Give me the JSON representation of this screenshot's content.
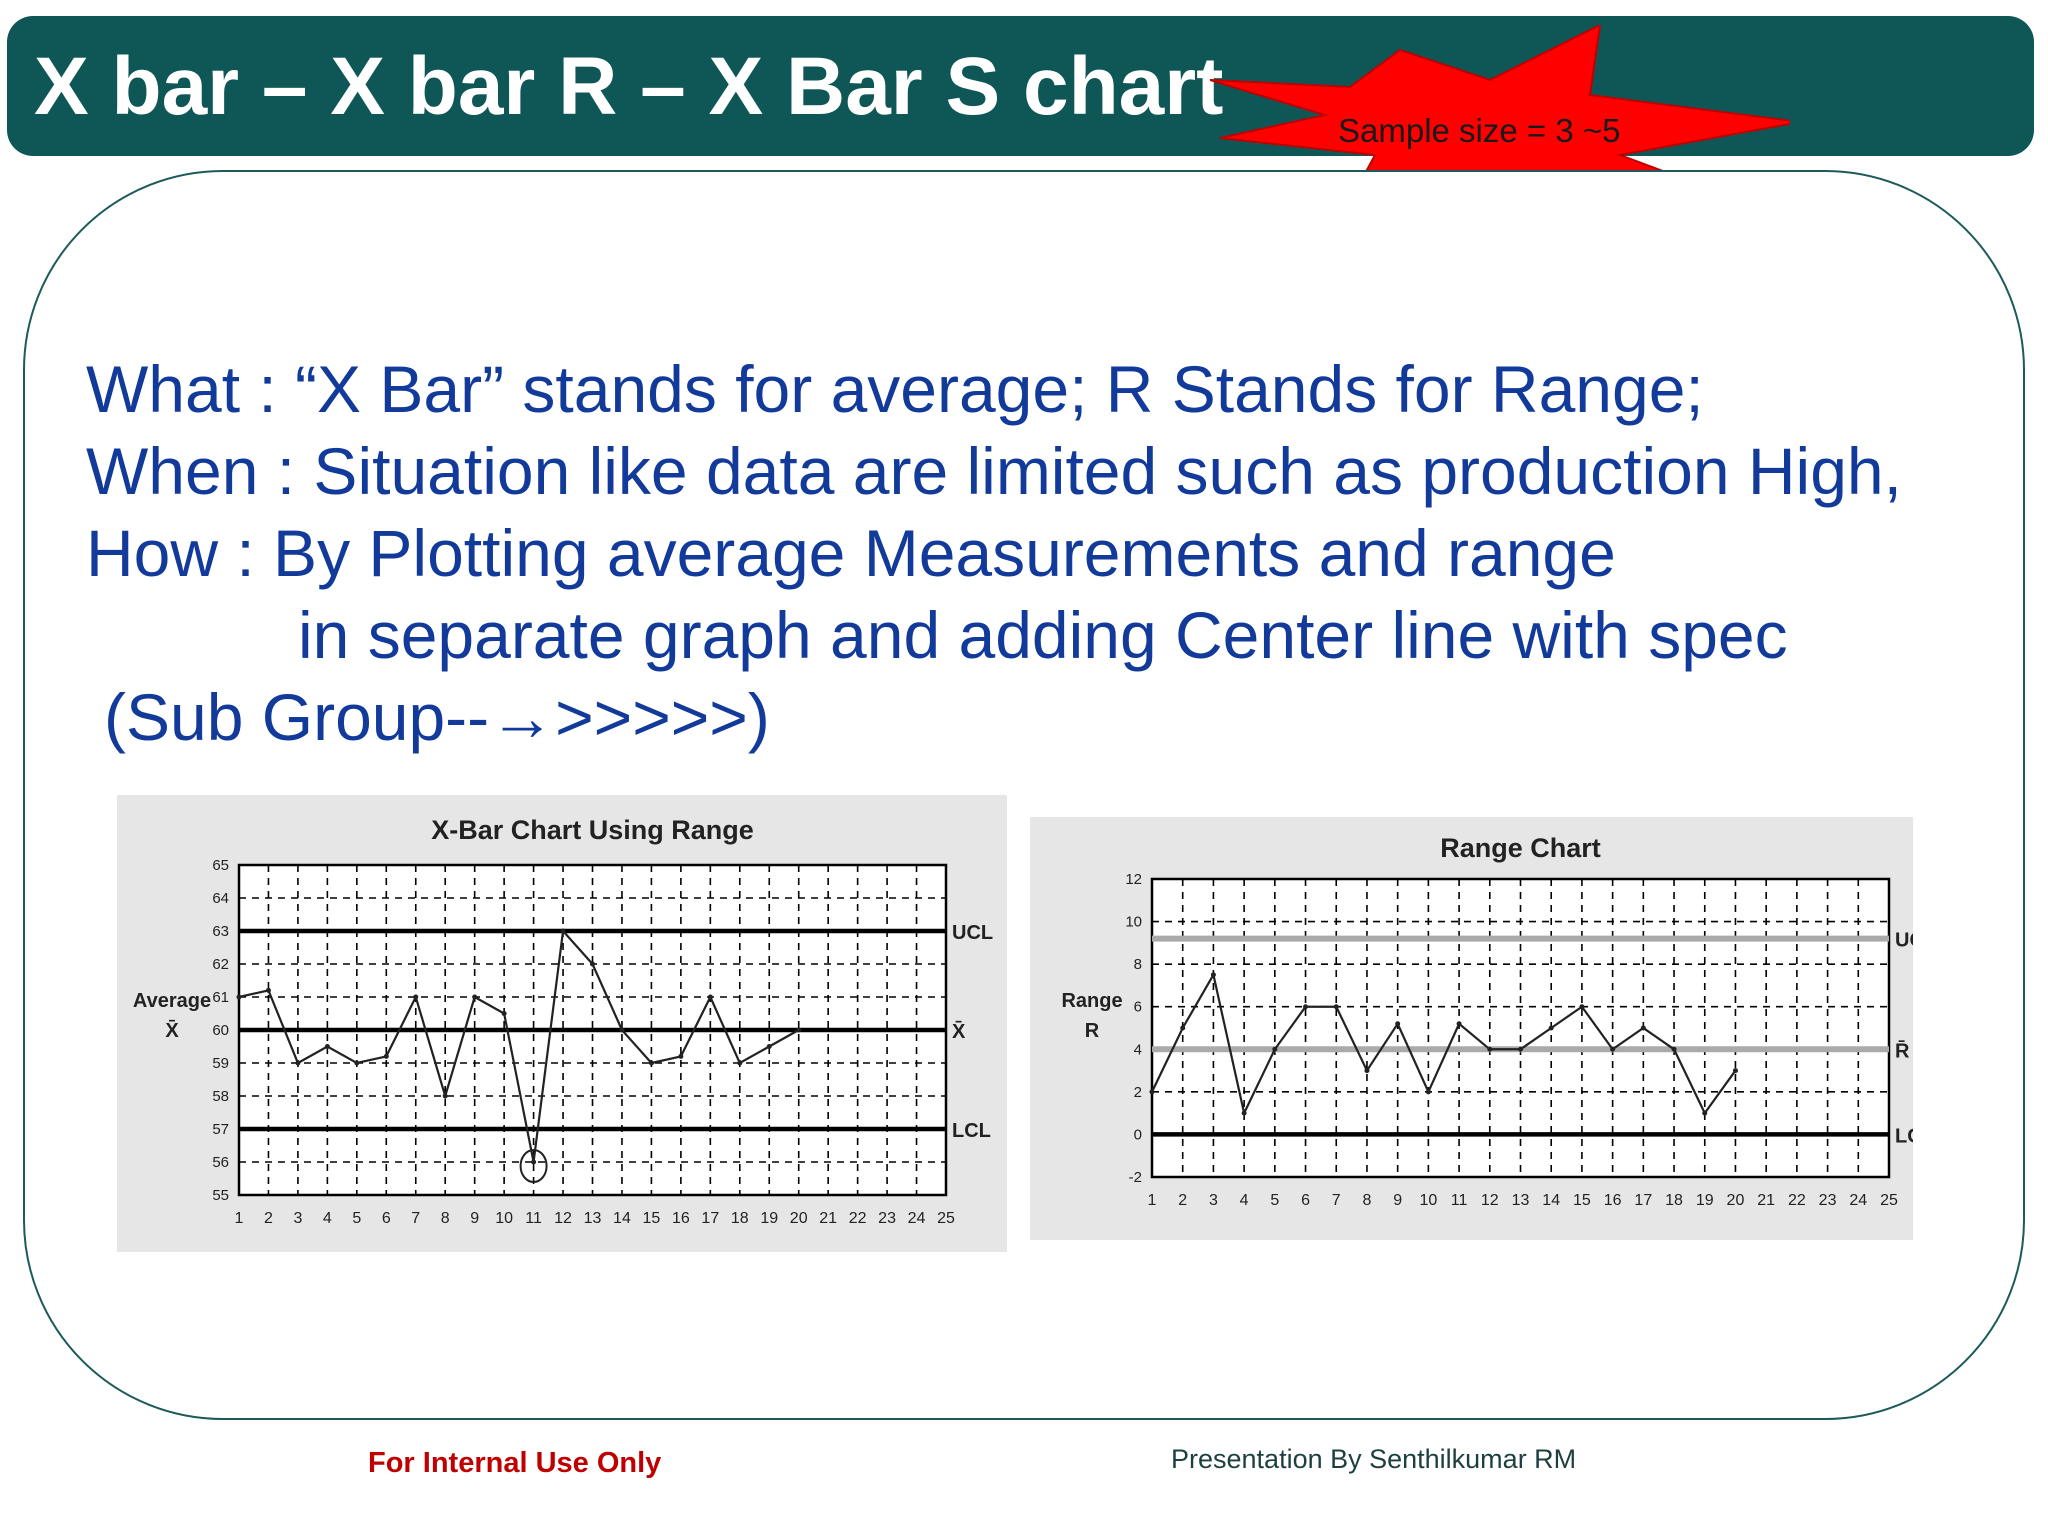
{
  "slide": {
    "title": "X bar – X bar R – X Bar S chart",
    "callout": "Sample size = 3 ~5",
    "body_lines": [
      "What : “X Bar” stands for average; R Stands for Range;",
      "When : Situation like data are limited such as production High,",
      "How : By Plotting average Measurements and range",
      "in separate graph and adding Center line with spec",
      "(Sub Group--→>>>>>)"
    ],
    "footer_left": "For Internal Use Only",
    "footer_right": "Presentation By Senthilkumar RM"
  },
  "colors": {
    "title_bar": "#0f5757",
    "burst": "#ff0000",
    "body_text": "#123a9a",
    "footer_left": "#c00000"
  },
  "chart_data": [
    {
      "type": "line",
      "title": "X-Bar Chart Using Range",
      "ylabel": "Average",
      "ylabel_symbol": "X̄",
      "x": [
        1,
        2,
        3,
        4,
        5,
        6,
        7,
        8,
        9,
        10,
        11,
        12,
        13,
        14,
        15,
        16,
        17,
        18,
        19,
        20,
        21,
        22,
        23,
        24,
        25
      ],
      "ylim": [
        55,
        65
      ],
      "yticks": [
        55,
        56,
        57,
        58,
        59,
        60,
        61,
        62,
        63,
        64,
        65
      ],
      "series": [
        {
          "x": [
            1,
            2,
            3,
            4,
            5,
            6,
            7,
            8,
            9,
            10,
            11,
            12,
            13,
            14,
            15,
            16,
            17,
            18,
            19,
            20
          ],
          "values": [
            61,
            61.2,
            59,
            59.5,
            59,
            59.2,
            61,
            58,
            61,
            60.5,
            56,
            63,
            62,
            60,
            59,
            59.2,
            61,
            59,
            59.5,
            60
          ]
        }
      ],
      "control_lines": [
        {
          "label": "UCL",
          "value": 63
        },
        {
          "label": "X̄",
          "value": 60
        },
        {
          "label": "LCL",
          "value": 57
        }
      ],
      "highlighted_point": {
        "x": 11,
        "value": 56
      },
      "grid": true
    },
    {
      "type": "line",
      "title": "Range Chart",
      "ylabel": "Range",
      "ylabel_symbol": "R",
      "x": [
        1,
        2,
        3,
        4,
        5,
        6,
        7,
        8,
        9,
        10,
        11,
        12,
        13,
        14,
        15,
        16,
        17,
        18,
        19,
        20,
        21,
        22,
        23,
        24,
        25
      ],
      "ylim": [
        -2,
        12
      ],
      "yticks": [
        -2,
        0,
        2,
        4,
        6,
        8,
        10,
        12
      ],
      "series": [
        {
          "x": [
            1,
            2,
            3,
            4,
            5,
            6,
            7,
            8,
            9,
            10,
            11,
            12,
            13,
            14,
            15,
            16,
            17,
            18,
            19,
            20
          ],
          "values": [
            2,
            5,
            7.5,
            1,
            4,
            6,
            6,
            3,
            5.2,
            2,
            5.2,
            4,
            4,
            5,
            6,
            4,
            5,
            4,
            1,
            3
          ]
        }
      ],
      "control_lines": [
        {
          "label": "UCL",
          "value": 9.2
        },
        {
          "label": "R̄",
          "value": 4
        },
        {
          "label": "LCL",
          "value": 0
        }
      ],
      "grid": true
    }
  ]
}
